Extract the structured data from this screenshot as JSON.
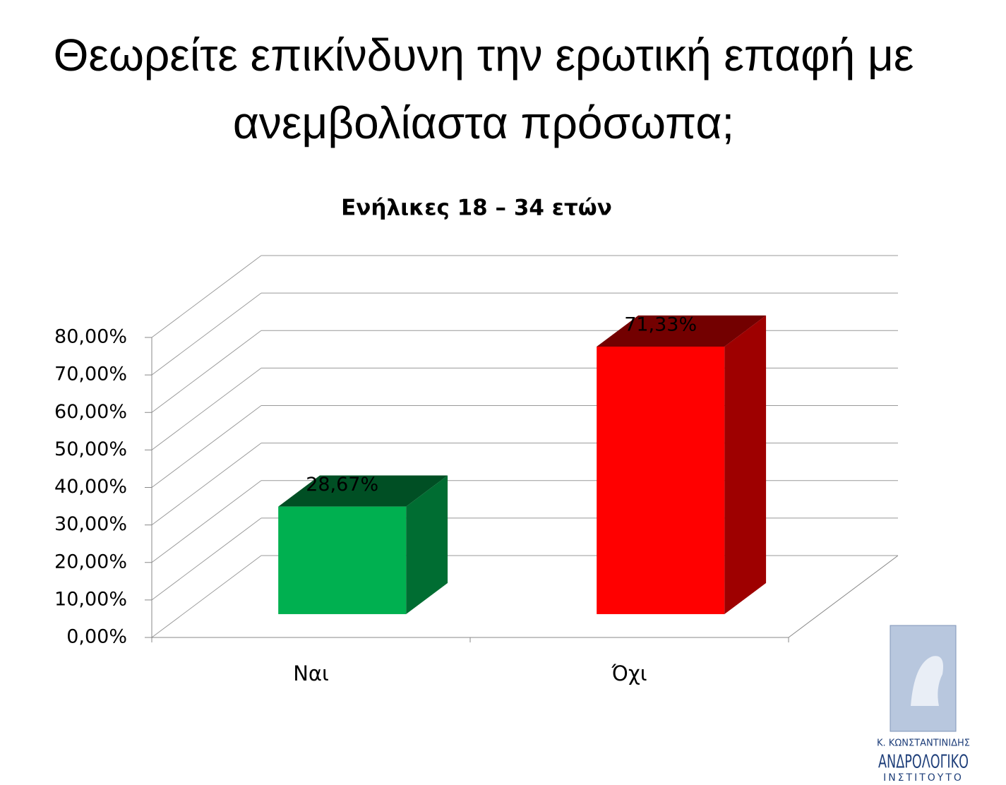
{
  "chart_data": {
    "type": "bar3d",
    "title": "Θεωρείτε επικίνδυνη την ερωτική επαφή με ανεμβολίαστα πρόσωπα;",
    "subtitle": "Ενήλικες 18 – 34 ετών",
    "categories": [
      "Ναι",
      "Όχι"
    ],
    "values": [
      28.67,
      71.33
    ],
    "value_labels": [
      "28,67%",
      "71,33%"
    ],
    "colors": [
      "#00b050",
      "#ff0000"
    ],
    "ylim": [
      0,
      80
    ],
    "yticks": [
      {
        "value": 0,
        "label": "0,00%"
      },
      {
        "value": 10,
        "label": "10,00%"
      },
      {
        "value": 20,
        "label": "20,00%"
      },
      {
        "value": 30,
        "label": "30,00%"
      },
      {
        "value": 40,
        "label": "40,00%"
      },
      {
        "value": 50,
        "label": "50,00%"
      },
      {
        "value": 60,
        "label": "60,00%"
      },
      {
        "value": 70,
        "label": "70,00%"
      },
      {
        "value": 80,
        "label": "80,00%"
      }
    ],
    "grid": true
  },
  "logo": {
    "name": "Κ. ΚΩΝΣΤΑΝΤΙΝΙΔΗΣ",
    "line1": "ΑΝΔΡΟΛΟΓΙΚΟ",
    "line2": "ΙΝΣΤΙΤΟΥΤΟ"
  }
}
